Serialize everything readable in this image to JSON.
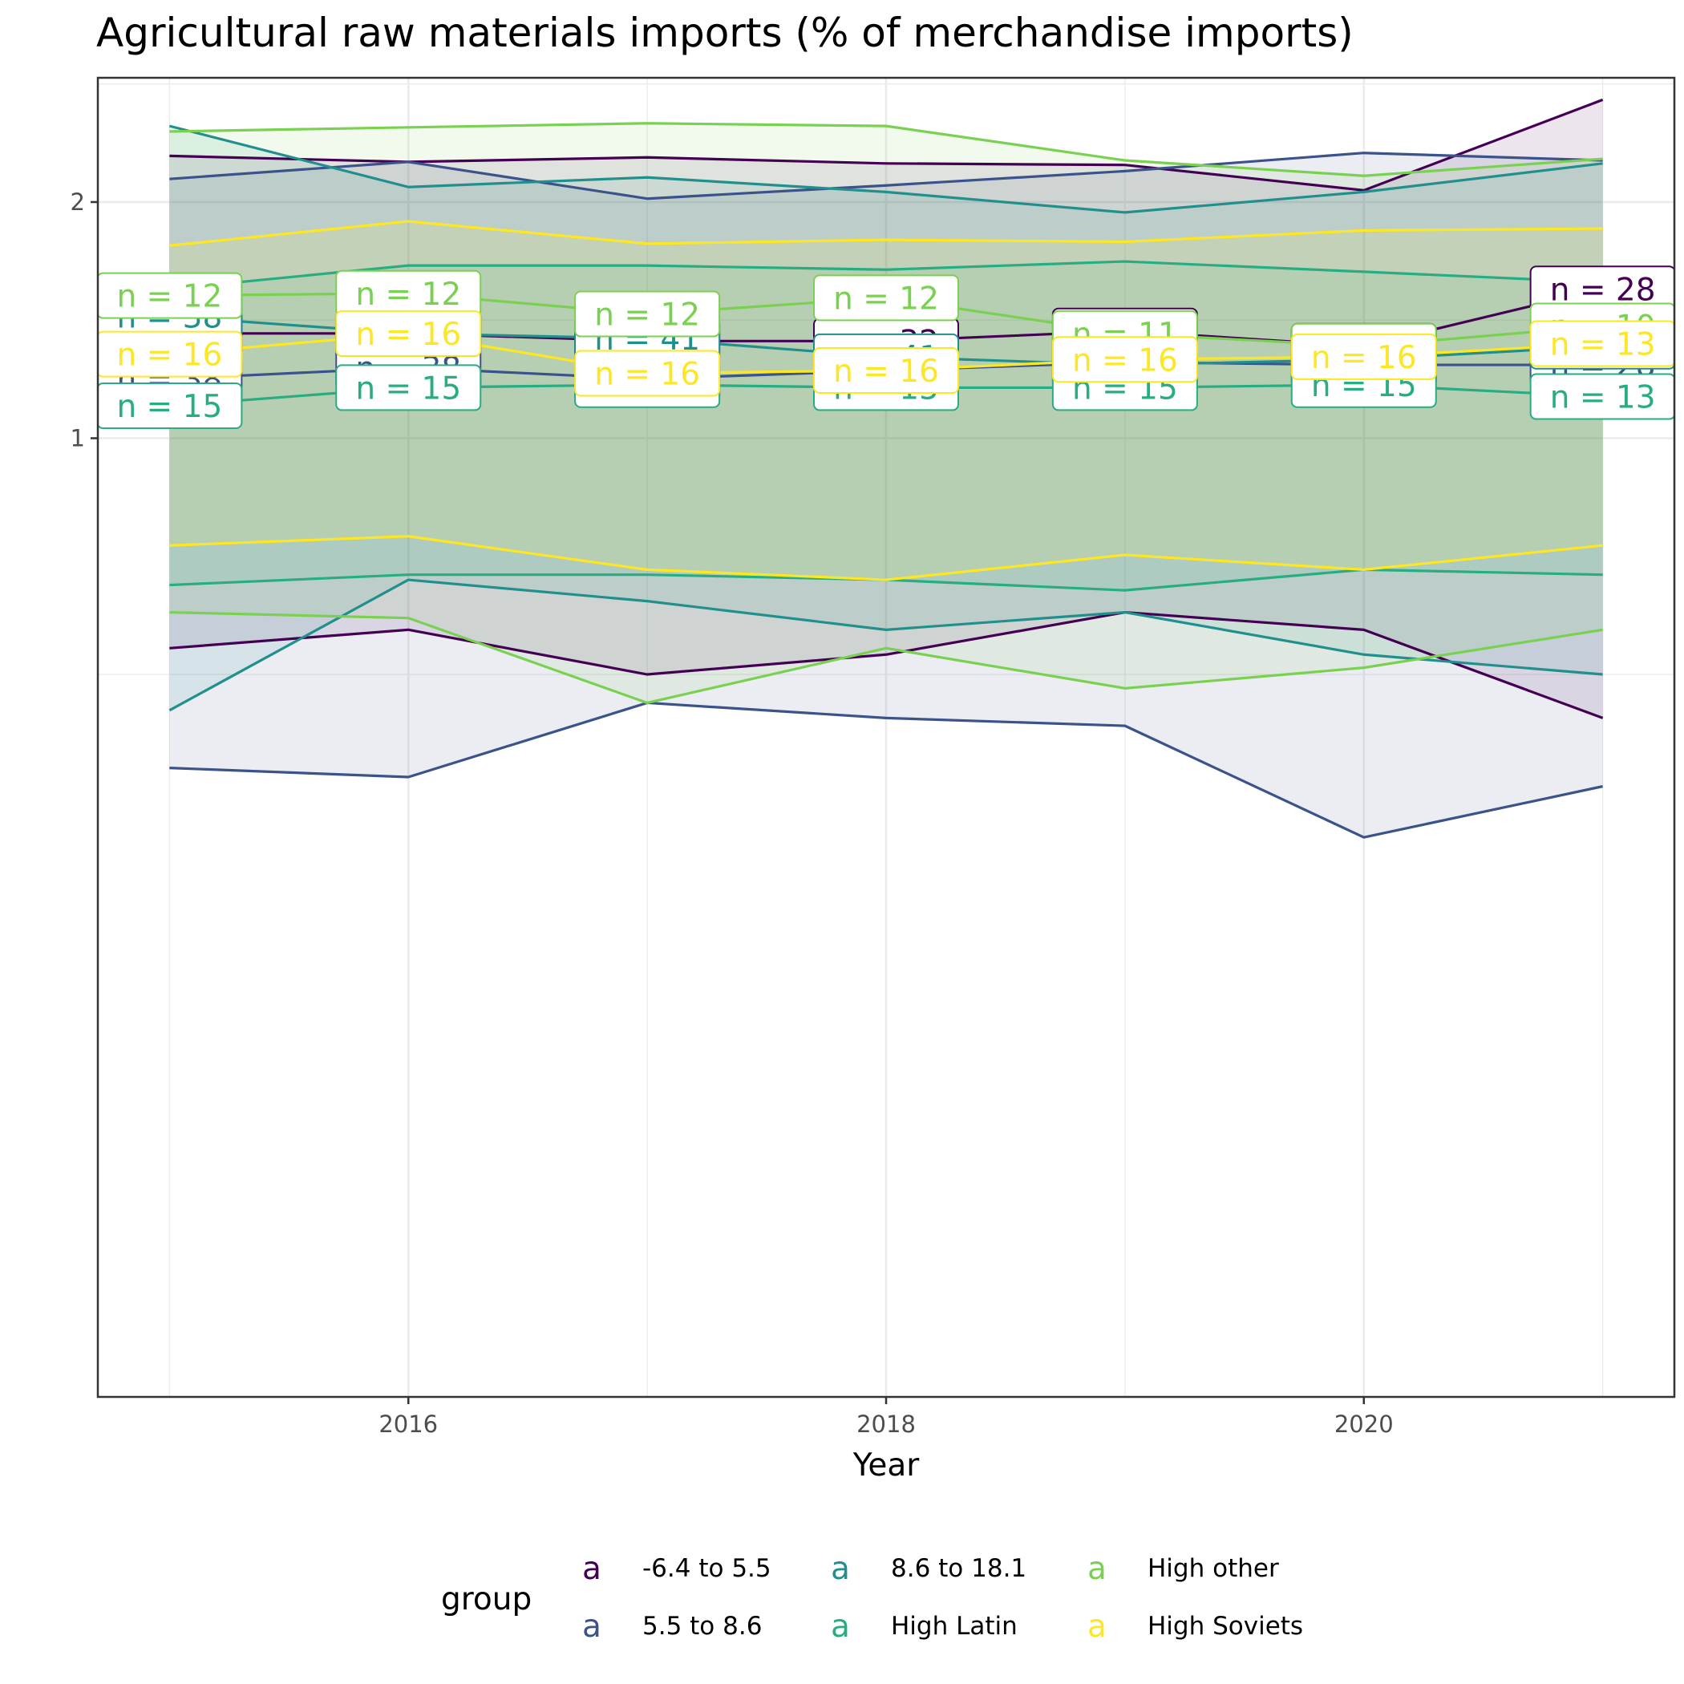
{
  "chart_data": {
    "type": "line",
    "title": "Agricultural raw materials imports (% of merchandise imports)",
    "xlabel": "Year",
    "ylabel": "",
    "x": [
      2015,
      2016,
      2017,
      2018,
      2019,
      2020,
      2021
    ],
    "xlim": [
      2014.7,
      2021.3
    ],
    "ylim": [
      0.06,
      2.88
    ],
    "log_y": true,
    "x_ticks": [
      2016,
      2018,
      2020
    ],
    "y_ticks": [
      1,
      2
    ],
    "grid": true,
    "legend_title": "group",
    "legend_position": "bottom",
    "legend_key_glyph": "a",
    "label_template": "n = {n}",
    "series": [
      {
        "name": "-6.4 to 5.5",
        "color": "#440154",
        "median": [
          1.36,
          1.36,
          1.33,
          1.33,
          1.37,
          1.31,
          1.55
        ],
        "upper": [
          2.29,
          2.25,
          2.28,
          2.24,
          2.23,
          2.07,
          2.7
        ],
        "lower": [
          0.54,
          0.57,
          0.5,
          0.53,
          0.6,
          0.57,
          0.44
        ],
        "n": [
          33,
          38,
          41,
          32,
          31,
          28,
          28
        ]
      },
      {
        "name": "5.5 to 8.6",
        "color": "#3b528b",
        "median": [
          1.19,
          1.23,
          1.19,
          1.22,
          1.25,
          1.24,
          1.24
        ],
        "upper": [
          2.14,
          2.25,
          2.02,
          2.1,
          2.19,
          2.31,
          2.26
        ],
        "lower": [
          0.38,
          0.37,
          0.46,
          0.44,
          0.43,
          0.31,
          0.36
        ],
        "n": [
          38,
          38,
          41,
          32,
          31,
          28,
          28
        ]
      },
      {
        "name": "8.6 to 18.1",
        "color": "#21908c",
        "median": [
          1.43,
          1.36,
          1.34,
          1.27,
          1.24,
          1.26,
          1.31
        ],
        "upper": [
          2.5,
          2.09,
          2.15,
          2.06,
          1.94,
          2.06,
          2.24
        ],
        "lower": [
          0.45,
          0.66,
          0.62,
          0.57,
          0.6,
          0.53,
          0.5
        ],
        "n": [
          38,
          38,
          41,
          41,
          31,
          28,
          28
        ]
      },
      {
        "name": "High Latin",
        "color": "#27ad81",
        "median": [
          1.1,
          1.16,
          1.17,
          1.16,
          1.16,
          1.17,
          1.13
        ],
        "upper": [
          1.55,
          1.66,
          1.66,
          1.64,
          1.68,
          1.63,
          1.58
        ],
        "lower": [
          0.65,
          0.67,
          0.67,
          0.66,
          0.64,
          0.68,
          0.67
        ],
        "n": [
          15,
          15,
          15,
          15,
          15,
          15,
          13
        ]
      },
      {
        "name": "High other",
        "color": "#7ad151",
        "median": [
          1.52,
          1.53,
          1.44,
          1.51,
          1.36,
          1.31,
          1.39
        ],
        "upper": [
          2.46,
          2.49,
          2.52,
          2.5,
          2.26,
          2.16,
          2.27
        ],
        "lower": [
          0.6,
          0.59,
          0.46,
          0.54,
          0.48,
          0.51,
          0.57
        ],
        "n": [
          12,
          12,
          12,
          12,
          11,
          11,
          10
        ]
      },
      {
        "name": "High Soviets",
        "color": "#fde725",
        "median": [
          1.28,
          1.36,
          1.21,
          1.22,
          1.26,
          1.27,
          1.32
        ],
        "upper": [
          1.76,
          1.89,
          1.77,
          1.79,
          1.78,
          1.84,
          1.85
        ],
        "lower": [
          0.73,
          0.75,
          0.68,
          0.66,
          0.71,
          0.68,
          0.73
        ],
        "n": [
          16,
          16,
          16,
          16,
          16,
          16,
          13
        ]
      }
    ]
  }
}
